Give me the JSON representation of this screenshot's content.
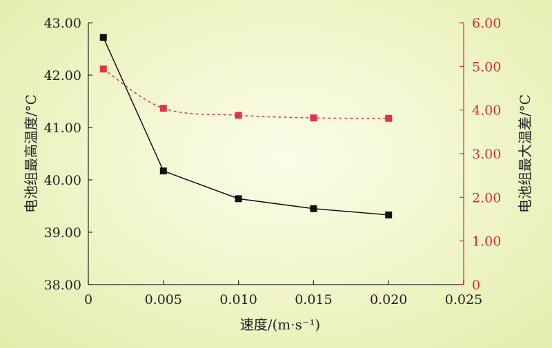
{
  "colors": {
    "primary_series": "#111111",
    "secondary_series": "#e03445",
    "right_axis": "#d42a3a",
    "background": "#eef3c2"
  },
  "chart_data": {
    "type": "line",
    "title": "",
    "xlabel": "速度/(m·s⁻¹)",
    "ylabel_left": "电池组最高温度/°C",
    "ylabel_right": "电池组最大温差/°C",
    "xlim": [
      0,
      0.025
    ],
    "ylim_left": [
      38.0,
      43.0
    ],
    "ylim_right": [
      0,
      6.0
    ],
    "x_ticks": [
      "0",
      "0.005",
      "0.010",
      "0.015",
      "0.020",
      "0.025"
    ],
    "y_left_ticks": [
      "38.00",
      "39.00",
      "40.00",
      "41.00",
      "42.00",
      "43.00"
    ],
    "y_right_ticks": [
      "0",
      "1.00",
      "2.00",
      "3.00",
      "4.00",
      "5.00",
      "6.00"
    ],
    "x": [
      0.001,
      0.005,
      0.01,
      0.015,
      0.02
    ],
    "series": [
      {
        "axis": "left",
        "values": [
          42.72,
          40.17,
          39.64,
          39.45,
          39.33
        ],
        "marker": "square",
        "line": "solid",
        "color": "#111111"
      },
      {
        "axis": "right",
        "values": [
          4.94,
          4.04,
          3.88,
          3.82,
          3.81
        ],
        "marker": "square",
        "line": "dashed",
        "color": "#e03445"
      }
    ],
    "grid": false,
    "legend": "none"
  }
}
